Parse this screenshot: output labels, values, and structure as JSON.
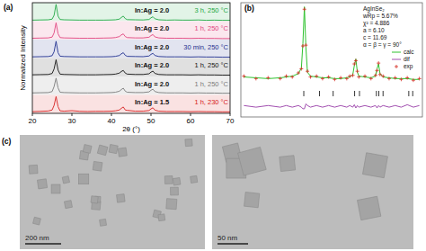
{
  "chart_data": [
    {
      "type": "line",
      "title": "(a)",
      "x_label": "2θ (°)",
      "y_label": "Normalized Intensity",
      "x": [
        20,
        22,
        24,
        25,
        25.5,
        26,
        26.5,
        27,
        28,
        30,
        32,
        34,
        36,
        38,
        40,
        41,
        42,
        42.5,
        43,
        43.5,
        44,
        46,
        48,
        49.5,
        50,
        50.5,
        51,
        52,
        54,
        56,
        58,
        60,
        62,
        64,
        66,
        68,
        70
      ],
      "xlim": [
        20,
        70
      ],
      "xticks": [
        20,
        30,
        40,
        50,
        60,
        70
      ],
      "ylim": [
        0,
        1.1
      ],
      "tick_labels": "x",
      "series": [
        {
          "name": "3 h, 250 °C",
          "annotation": "In:Ag = 2.0",
          "color": "#22a845",
          "values": [
            0.06,
            0.07,
            0.08,
            0.12,
            0.35,
            1.0,
            0.3,
            0.1,
            0.08,
            0.07,
            0.06,
            0.06,
            0.06,
            0.06,
            0.07,
            0.08,
            0.12,
            0.22,
            0.3,
            0.15,
            0.09,
            0.08,
            0.07,
            0.1,
            0.2,
            0.26,
            0.14,
            0.08,
            0.06,
            0.07,
            0.06,
            0.06,
            0.07,
            0.05,
            0.06,
            0.05,
            0.05
          ]
        },
        {
          "name": "1 h, 250 °C",
          "annotation": "In:Ag = 2.0",
          "color": "#e0457f",
          "values": [
            0.08,
            0.09,
            0.1,
            0.15,
            0.4,
            1.0,
            0.35,
            0.12,
            0.1,
            0.09,
            0.08,
            0.08,
            0.08,
            0.09,
            0.1,
            0.12,
            0.18,
            0.28,
            0.34,
            0.18,
            0.12,
            0.1,
            0.1,
            0.14,
            0.24,
            0.3,
            0.16,
            0.1,
            0.08,
            0.08,
            0.08,
            0.07,
            0.08,
            0.07,
            0.07,
            0.06,
            0.06
          ]
        },
        {
          "name": "30 min, 250 °C",
          "annotation": "In:Ag = 2.0",
          "color": "#1f2f8f",
          "values": [
            0.07,
            0.08,
            0.09,
            0.14,
            0.38,
            1.0,
            0.32,
            0.11,
            0.09,
            0.08,
            0.07,
            0.07,
            0.07,
            0.07,
            0.08,
            0.1,
            0.15,
            0.25,
            0.32,
            0.16,
            0.1,
            0.09,
            0.08,
            0.12,
            0.22,
            0.28,
            0.15,
            0.09,
            0.07,
            0.07,
            0.07,
            0.06,
            0.07,
            0.06,
            0.06,
            0.05,
            0.05
          ]
        },
        {
          "name": "1 h, 250 °C",
          "annotation": "In:Ag = 2.0",
          "color": "#111111",
          "values": [
            0.1,
            0.11,
            0.12,
            0.18,
            0.45,
            1.0,
            0.38,
            0.14,
            0.12,
            0.11,
            0.1,
            0.1,
            0.1,
            0.11,
            0.12,
            0.14,
            0.2,
            0.3,
            0.36,
            0.2,
            0.14,
            0.12,
            0.12,
            0.16,
            0.26,
            0.32,
            0.18,
            0.12,
            0.1,
            0.1,
            0.1,
            0.09,
            0.1,
            0.09,
            0.09,
            0.08,
            0.08
          ]
        },
        {
          "name": "1 h, 250 °C",
          "annotation": "In:Ag = 2.0",
          "color": "#7a7a7a",
          "values": [
            0.12,
            0.13,
            0.14,
            0.2,
            0.5,
            1.0,
            0.42,
            0.16,
            0.14,
            0.13,
            0.12,
            0.12,
            0.12,
            0.13,
            0.14,
            0.16,
            0.22,
            0.32,
            0.4,
            0.22,
            0.16,
            0.14,
            0.14,
            0.18,
            0.28,
            0.34,
            0.2,
            0.14,
            0.12,
            0.12,
            0.12,
            0.11,
            0.12,
            0.11,
            0.11,
            0.1,
            0.1
          ]
        },
        {
          "name": "1 h, 230 °C",
          "annotation": "In:Ag = 1.5",
          "color": "#d62020",
          "values": [
            0.1,
            0.12,
            0.14,
            0.2,
            0.48,
            1.0,
            0.4,
            0.15,
            0.13,
            0.16,
            0.12,
            0.11,
            0.12,
            0.12,
            0.13,
            0.15,
            0.2,
            0.3,
            0.38,
            0.2,
            0.18,
            0.13,
            0.13,
            0.17,
            0.27,
            0.33,
            0.19,
            0.13,
            0.11,
            0.11,
            0.11,
            0.1,
            0.11,
            0.1,
            0.1,
            0.09,
            0.09
          ]
        }
      ]
    },
    {
      "type": "line",
      "title": "(b)",
      "annotations": [
        "AgInSe₂",
        "wRp = 5.67%",
        "χ² = 4.886",
        "a = 6.10",
        "c = 11.69",
        "α = β = γ = 90°"
      ],
      "x": [
        6,
        10,
        14,
        18,
        20,
        22,
        24,
        25,
        25.5,
        26,
        26.5,
        27,
        28,
        30,
        32,
        34,
        36,
        38,
        40,
        41,
        42,
        42.5,
        43,
        43.5,
        44,
        46,
        48,
        49.5,
        50,
        50.5,
        51,
        52,
        54,
        56,
        58,
        60,
        62,
        64
      ],
      "xlim": [
        5,
        65
      ],
      "ylim": [
        -0.35,
        1.05
      ],
      "tick_labels": false,
      "legend": "right",
      "reflections": [
        25.8,
        31,
        35.5,
        42.6,
        44.2,
        49.8,
        50.6,
        52,
        60.5,
        61.8
      ],
      "series": [
        {
          "name": "calc",
          "type": "line",
          "color": "#2fc32f",
          "values": [
            0.14,
            0.13,
            0.12,
            0.13,
            0.14,
            0.15,
            0.18,
            0.25,
            0.55,
            1.0,
            0.5,
            0.2,
            0.15,
            0.14,
            0.13,
            0.13,
            0.12,
            0.12,
            0.13,
            0.14,
            0.17,
            0.28,
            0.36,
            0.2,
            0.15,
            0.14,
            0.13,
            0.15,
            0.24,
            0.3,
            0.18,
            0.14,
            0.13,
            0.12,
            0.12,
            0.12,
            0.11,
            0.11
          ]
        },
        {
          "name": "dif",
          "type": "line",
          "color": "#a24fb0",
          "values": [
            -0.21,
            -0.23,
            -0.21,
            -0.23,
            -0.21,
            -0.23,
            -0.21,
            -0.23,
            -0.25,
            -0.25,
            -0.19,
            -0.21,
            -0.23,
            -0.21,
            -0.23,
            -0.21,
            -0.23,
            -0.21,
            -0.23,
            -0.21,
            -0.23,
            -0.2,
            -0.24,
            -0.21,
            -0.23,
            -0.21,
            -0.23,
            -0.21,
            -0.24,
            -0.21,
            -0.23,
            -0.21,
            -0.23,
            -0.21,
            -0.23,
            -0.2,
            -0.23,
            -0.21
          ]
        },
        {
          "name": "exp",
          "type": "scatter",
          "marker": "plus",
          "color": "#d42a1e",
          "values": [
            0.15,
            0.12,
            0.13,
            0.12,
            0.15,
            0.14,
            0.19,
            0.24,
            0.52,
            0.97,
            0.53,
            0.21,
            0.14,
            0.15,
            0.12,
            0.14,
            0.11,
            0.13,
            0.12,
            0.15,
            0.16,
            0.3,
            0.34,
            0.21,
            0.14,
            0.15,
            0.12,
            0.16,
            0.22,
            0.31,
            0.17,
            0.15,
            0.12,
            0.13,
            0.11,
            0.13,
            0.1,
            0.12
          ]
        }
      ]
    }
  ],
  "images": {
    "label": "(c)",
    "scale_bars": [
      "200 nm",
      "50 nm"
    ]
  }
}
